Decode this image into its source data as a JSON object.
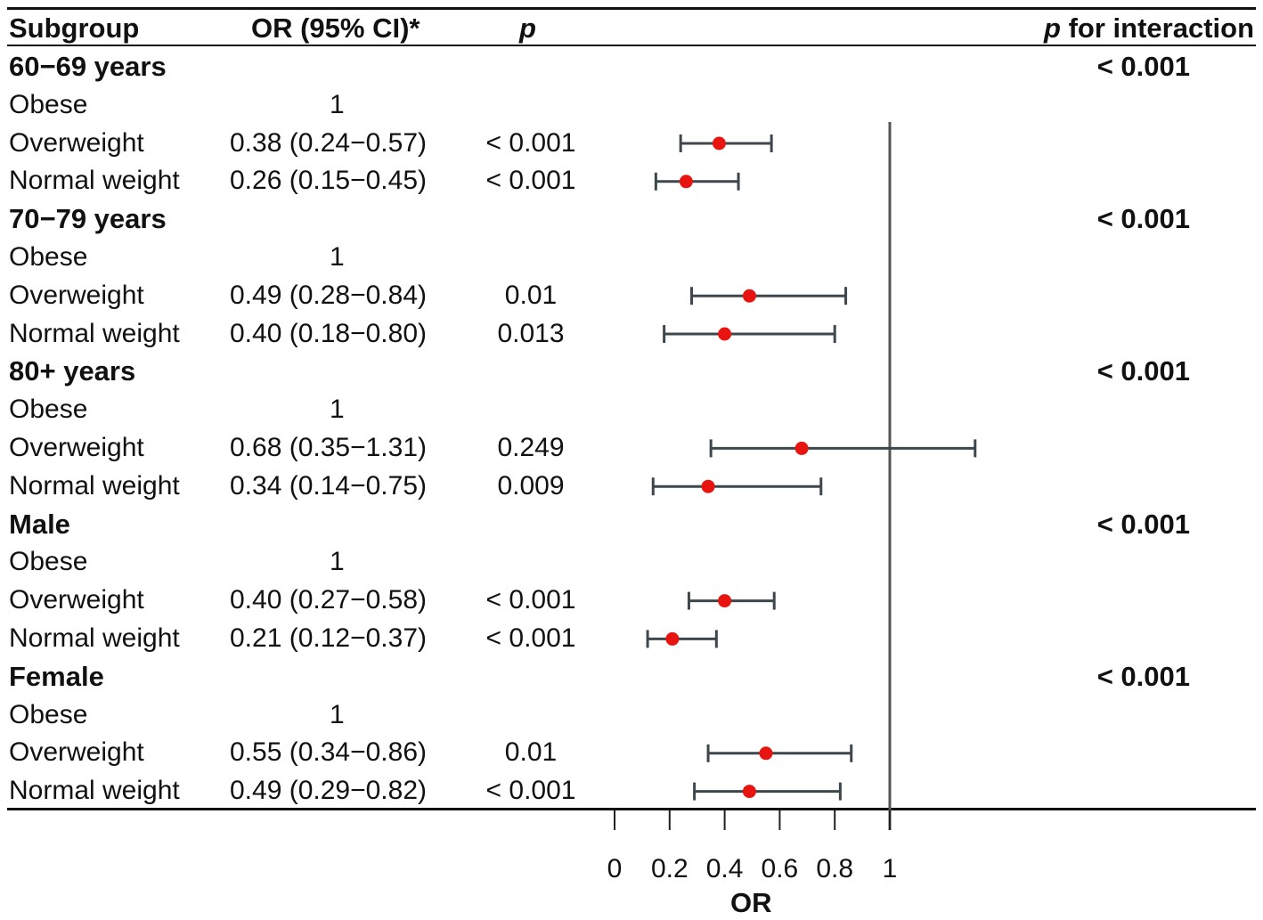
{
  "header": {
    "subgroup": "Subgroup",
    "or_ci": "OR (95% CI)*",
    "p": "p",
    "p_interaction_italic": "p",
    "p_interaction_rest": " for interaction"
  },
  "rows": [
    {
      "type": "group",
      "label": "60−69 years",
      "p_interaction": "< 0.001"
    },
    {
      "type": "item",
      "label": "Obese",
      "or_text": "1",
      "p": "",
      "ref": true
    },
    {
      "type": "item",
      "label": "Overweight",
      "or_text": "0.38 (0.24−0.57)",
      "p": "< 0.001",
      "or": 0.38,
      "lo": 0.24,
      "hi": 0.57
    },
    {
      "type": "item",
      "label": "Normal weight",
      "or_text": "0.26 (0.15−0.45)",
      "p": "< 0.001",
      "or": 0.26,
      "lo": 0.15,
      "hi": 0.45
    },
    {
      "type": "group",
      "label": "70−79 years",
      "p_interaction": "< 0.001"
    },
    {
      "type": "item",
      "label": "Obese",
      "or_text": "1",
      "p": "",
      "ref": true
    },
    {
      "type": "item",
      "label": "Overweight",
      "or_text": "0.49 (0.28−0.84)",
      "p": "0.01",
      "or": 0.49,
      "lo": 0.28,
      "hi": 0.84
    },
    {
      "type": "item",
      "label": "Normal weight",
      "or_text": "0.40 (0.18−0.80)",
      "p": "0.013",
      "or": 0.4,
      "lo": 0.18,
      "hi": 0.8
    },
    {
      "type": "group",
      "label": "80+ years",
      "p_interaction": "< 0.001"
    },
    {
      "type": "item",
      "label": "Obese",
      "or_text": "1",
      "p": "",
      "ref": true
    },
    {
      "type": "item",
      "label": "Overweight",
      "or_text": "0.68 (0.35−1.31)",
      "p": "0.249",
      "or": 0.68,
      "lo": 0.35,
      "hi": 1.31
    },
    {
      "type": "item",
      "label": "Normal weight",
      "or_text": "0.34 (0.14−0.75)",
      "p": "0.009",
      "or": 0.34,
      "lo": 0.14,
      "hi": 0.75
    },
    {
      "type": "group",
      "label": "Male",
      "p_interaction": "< 0.001"
    },
    {
      "type": "item",
      "label": "Obese",
      "or_text": "1",
      "p": "",
      "ref": true
    },
    {
      "type": "item",
      "label": "Overweight",
      "or_text": "0.40 (0.27−0.58)",
      "p": "< 0.001",
      "or": 0.4,
      "lo": 0.27,
      "hi": 0.58
    },
    {
      "type": "item",
      "label": "Normal weight",
      "or_text": "0.21 (0.12−0.37)",
      "p": "< 0.001",
      "or": 0.21,
      "lo": 0.12,
      "hi": 0.37
    },
    {
      "type": "group",
      "label": "Female",
      "p_interaction": "< 0.001"
    },
    {
      "type": "item",
      "label": "Obese",
      "or_text": "1",
      "p": "",
      "ref": true
    },
    {
      "type": "item",
      "label": "Overweight",
      "or_text": "0.55 (0.34−0.86)",
      "p": "0.01",
      "or": 0.55,
      "lo": 0.34,
      "hi": 0.86
    },
    {
      "type": "item",
      "label": "Normal weight",
      "or_text": "0.49 (0.29−0.82)",
      "p": "< 0.001",
      "or": 0.49,
      "lo": 0.29,
      "hi": 0.82
    }
  ],
  "colors": {
    "point": "#e8140f",
    "whisker": "#3d474c",
    "reference_line": "#555555",
    "text": "#111111"
  },
  "chart_data": {
    "type": "forest",
    "xlabel": "OR",
    "x_ticks": [
      0,
      0.2,
      0.4,
      0.6,
      0.8,
      1
    ],
    "x_tick_labels": [
      "0",
      "0.2",
      "0.4",
      "0.6",
      "0.8",
      "1"
    ],
    "x_range": [
      0,
      1
    ],
    "reference_line": 1,
    "series": [
      {
        "name": "60−69 years / Overweight",
        "or": 0.38,
        "lo": 0.24,
        "hi": 0.57
      },
      {
        "name": "60−69 years / Normal weight",
        "or": 0.26,
        "lo": 0.15,
        "hi": 0.45
      },
      {
        "name": "70−79 years / Overweight",
        "or": 0.49,
        "lo": 0.28,
        "hi": 0.84
      },
      {
        "name": "70−79 years / Normal weight",
        "or": 0.4,
        "lo": 0.18,
        "hi": 0.8
      },
      {
        "name": "80+ years / Overweight",
        "or": 0.68,
        "lo": 0.35,
        "hi": 1.31
      },
      {
        "name": "80+ years / Normal weight",
        "or": 0.34,
        "lo": 0.14,
        "hi": 0.75
      },
      {
        "name": "Male / Overweight",
        "or": 0.4,
        "lo": 0.27,
        "hi": 0.58
      },
      {
        "name": "Male / Normal weight",
        "or": 0.21,
        "lo": 0.12,
        "hi": 0.37
      },
      {
        "name": "Female / Overweight",
        "or": 0.55,
        "lo": 0.34,
        "hi": 0.86
      },
      {
        "name": "Female / Normal weight",
        "or": 0.49,
        "lo": 0.29,
        "hi": 0.82
      }
    ]
  }
}
